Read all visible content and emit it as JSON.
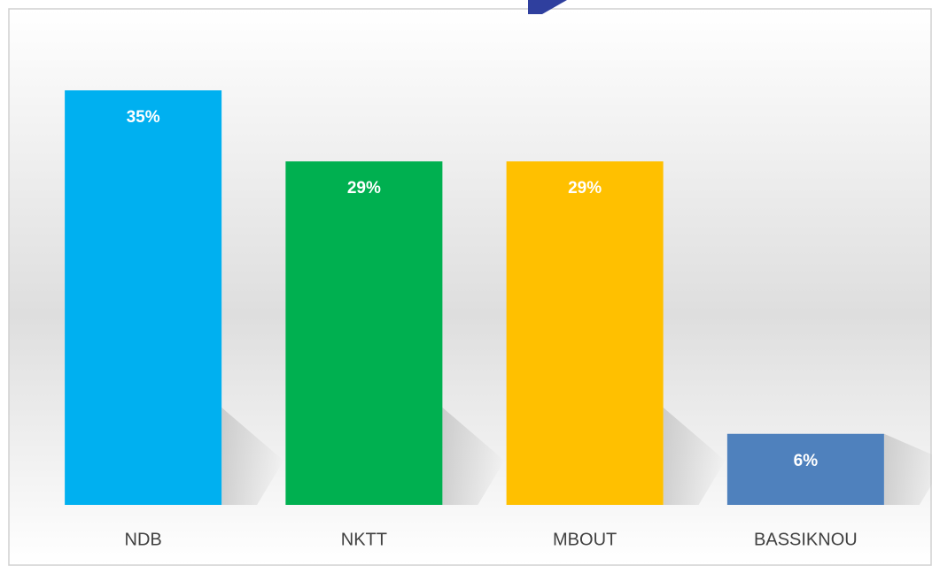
{
  "chart_data": {
    "type": "bar",
    "categories": [
      "NDB",
      "NKTT",
      "MBOUT",
      "BASSIKNOU"
    ],
    "values": [
      35,
      29,
      29,
      6
    ],
    "value_labels": [
      "35%",
      "29%",
      "29%",
      "6%"
    ],
    "colors": [
      "#00b0f0",
      "#00b050",
      "#ffc000",
      "#4f81bd"
    ],
    "grid": false
  }
}
